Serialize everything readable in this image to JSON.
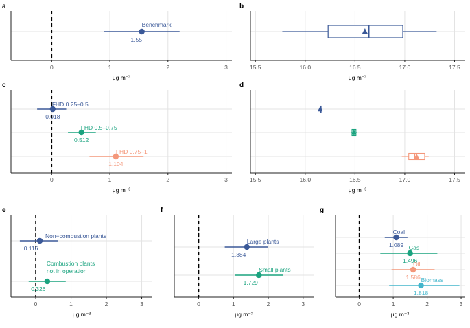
{
  "colors": {
    "blue": "#3b5998",
    "green": "#1aa37f",
    "salmon": "#f4977a",
    "teal": "#44b6cc",
    "grid": "#e3e3e3",
    "axis": "#222222",
    "tick": "#555555"
  },
  "chart_data": [
    {
      "panel": "a",
      "type": "scatter",
      "xlabel": "μg m⁻³",
      "xlim": [
        -0.7,
        3.1
      ],
      "xticks": [
        0,
        1,
        2,
        3
      ],
      "vline": 0,
      "points": [
        {
          "label": "Benchmark",
          "value": 1.55,
          "lo": 0.9,
          "hi": 2.2,
          "color": "blue"
        }
      ]
    },
    {
      "panel": "b",
      "type": "box",
      "xlabel": "μg m⁻³",
      "xlim": [
        15.45,
        17.6
      ],
      "xticks": [
        15.5,
        16.0,
        16.5,
        17.0,
        17.5
      ],
      "boxes": [
        {
          "min": 15.77,
          "q1": 16.23,
          "median": 16.64,
          "q3": 16.98,
          "max": 17.32,
          "mean": 16.6,
          "color": "blue"
        }
      ]
    },
    {
      "panel": "c",
      "type": "scatter",
      "xlabel": "μg m⁻³",
      "xlim": [
        -0.7,
        3.1
      ],
      "xticks": [
        0,
        1,
        2,
        3
      ],
      "vline": 0,
      "points": [
        {
          "label": "FHD 0.25–0.5",
          "value": 0.018,
          "value_label": "0.018",
          "lo": -0.25,
          "hi": 0.25,
          "color": "blue"
        },
        {
          "label": "FHD 0.5–0.75",
          "value": 0.512,
          "value_label": "0.512",
          "lo": 0.28,
          "hi": 0.76,
          "color": "green"
        },
        {
          "label": "FHD 0.75–1",
          "value": 1.104,
          "value_label": "1.104",
          "lo": 0.65,
          "hi": 1.58,
          "color": "salmon"
        }
      ]
    },
    {
      "panel": "d",
      "type": "box",
      "xlabel": "μg m⁻³",
      "xlim": [
        15.45,
        17.6
      ],
      "xticks": [
        15.5,
        16.0,
        16.5,
        17.0,
        17.5
      ],
      "boxes": [
        {
          "min": 16.14,
          "q1": 16.15,
          "median": 16.155,
          "q3": 16.16,
          "max": 16.17,
          "mean": 16.15,
          "color": "blue"
        },
        {
          "min": 16.46,
          "q1": 16.47,
          "median": 16.49,
          "q3": 16.51,
          "max": 16.52,
          "mean": 16.49,
          "color": "green"
        },
        {
          "min": 16.97,
          "q1": 17.04,
          "median": 17.1,
          "q3": 17.2,
          "max": 17.24,
          "mean": 17.12,
          "color": "salmon"
        }
      ]
    },
    {
      "panel": "e",
      "type": "scatter",
      "xlabel": "μg m⁻³",
      "xlim": [
        -0.7,
        3.3
      ],
      "xticks": [
        0,
        1,
        2,
        3
      ],
      "vline": 0,
      "points": [
        {
          "label": "Non−combustion plants",
          "value": 0.116,
          "value_label": "0.116",
          "lo": -0.45,
          "hi": 0.62,
          "color": "blue"
        },
        {
          "label": "Combustion plants\nnot in operation",
          "value": 0.326,
          "value_label": "0.326",
          "lo": -0.2,
          "hi": 0.85,
          "color": "green"
        }
      ]
    },
    {
      "panel": "f",
      "type": "scatter",
      "xlabel": "μg m⁻³",
      "xlim": [
        -0.7,
        3.3
      ],
      "xticks": [
        0,
        1,
        2,
        3
      ],
      "vline": 0,
      "points": [
        {
          "label": "Large plants",
          "value": 1.384,
          "value_label": "1.384",
          "lo": 0.75,
          "hi": 1.98,
          "color": "blue"
        },
        {
          "label": "Small plants",
          "value": 1.729,
          "value_label": "1.729",
          "lo": 1.05,
          "hi": 2.42,
          "color": "green"
        }
      ]
    },
    {
      "panel": "g",
      "type": "scatter",
      "xlabel": "μg m⁻³",
      "xlim": [
        -0.7,
        3.1
      ],
      "xticks": [
        0,
        1,
        2,
        3
      ],
      "vline": 0,
      "points": [
        {
          "label": "Coal",
          "value": 1.089,
          "value_label": "1.089",
          "lo": 0.75,
          "hi": 1.42,
          "color": "blue"
        },
        {
          "label": "Gas",
          "value": 1.496,
          "value_label": "1.496",
          "lo": 0.62,
          "hi": 2.3,
          "color": "green"
        },
        {
          "label": "Oil",
          "value": 1.586,
          "value_label": "1.586",
          "lo": 0.95,
          "hi": 2.22,
          "color": "salmon"
        },
        {
          "label": "Biomass",
          "value": 1.818,
          "value_label": "1.818",
          "lo": 0.88,
          "hi": 2.95,
          "color": "teal"
        }
      ]
    }
  ]
}
